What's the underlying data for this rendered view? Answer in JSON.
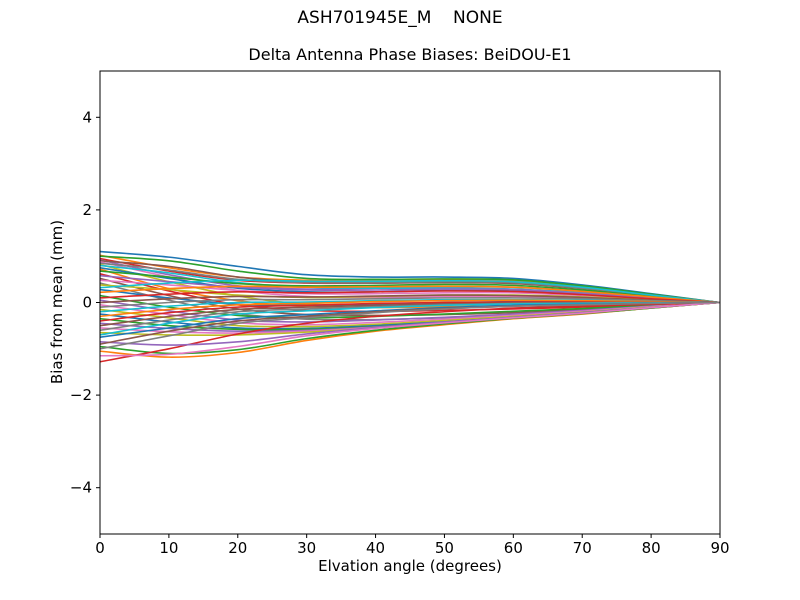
{
  "figure": {
    "suptitle": "ASH701945E_M    NONE",
    "background": "#ffffff"
  },
  "chart_data": {
    "type": "line",
    "title": "Delta Antenna Phase Biases: BeiDOU-E1",
    "xlabel": "Elvation angle (degrees)",
    "ylabel": "Bias from mean (mm)",
    "xlim": [
      0,
      90
    ],
    "ylim": [
      -5,
      5
    ],
    "xticks": [
      0,
      10,
      20,
      30,
      40,
      50,
      60,
      70,
      80,
      90
    ],
    "xticklabels": [
      "0",
      "10",
      "20",
      "30",
      "40",
      "50",
      "60",
      "70",
      "80",
      "90"
    ],
    "yticks": [
      -4,
      -2,
      0,
      2,
      4
    ],
    "yticklabels": [
      "−4",
      "−2",
      "0",
      "2",
      "4"
    ],
    "grid": false,
    "legend": "none",
    "line_width": 1.6,
    "palette": [
      "#1f77b4",
      "#ff7f0e",
      "#2ca02c",
      "#d62728",
      "#9467bd",
      "#8c564b",
      "#e377c2",
      "#7f7f7f",
      "#bcbd22",
      "#17becf"
    ],
    "x": [
      0,
      10,
      20,
      30,
      40,
      50,
      60,
      70,
      80,
      90
    ],
    "series": [
      [
        1.1,
        0.98,
        0.78,
        0.6,
        0.55,
        0.55,
        0.52,
        0.38,
        0.19,
        0
      ],
      [
        1.02,
        0.75,
        0.55,
        0.48,
        0.47,
        0.49,
        0.47,
        0.34,
        0.17,
        0
      ],
      [
        1.0,
        0.9,
        0.68,
        0.52,
        0.5,
        0.51,
        0.49,
        0.36,
        0.18,
        0
      ],
      [
        0.95,
        0.68,
        0.48,
        0.42,
        0.42,
        0.44,
        0.43,
        0.31,
        0.15,
        0
      ],
      [
        0.92,
        0.6,
        0.36,
        0.29,
        0.31,
        0.34,
        0.33,
        0.24,
        0.12,
        0
      ],
      [
        0.9,
        0.78,
        0.55,
        0.44,
        0.42,
        0.43,
        0.41,
        0.3,
        0.15,
        0
      ],
      [
        0.88,
        0.55,
        0.26,
        0.13,
        0.11,
        0.13,
        0.13,
        0.1,
        0.05,
        0
      ],
      [
        0.85,
        0.7,
        0.5,
        0.43,
        0.43,
        0.45,
        0.43,
        0.31,
        0.16,
        0
      ],
      [
        0.82,
        0.45,
        0.14,
        -0.04,
        -0.07,
        -0.04,
        -0.02,
        -0.01,
        0.0,
        0
      ],
      [
        0.8,
        0.64,
        0.43,
        0.33,
        0.31,
        0.31,
        0.29,
        0.21,
        0.11,
        0
      ],
      [
        0.75,
        0.52,
        0.31,
        0.23,
        0.23,
        0.26,
        0.25,
        0.18,
        0.09,
        0
      ],
      [
        0.72,
        0.3,
        0.04,
        -0.09,
        -0.11,
        -0.09,
        -0.07,
        -0.05,
        -0.02,
        0
      ],
      [
        0.68,
        0.55,
        0.41,
        0.36,
        0.37,
        0.39,
        0.37,
        0.27,
        0.13,
        0
      ],
      [
        0.62,
        0.25,
        -0.05,
        -0.17,
        -0.19,
        -0.17,
        -0.14,
        -0.1,
        -0.05,
        0
      ],
      [
        0.58,
        0.45,
        0.33,
        0.27,
        0.27,
        0.29,
        0.28,
        0.2,
        0.1,
        0
      ],
      [
        0.52,
        0.15,
        -0.14,
        -0.26,
        -0.28,
        -0.26,
        -0.22,
        -0.15,
        -0.07,
        0
      ],
      [
        0.48,
        0.38,
        0.26,
        0.19,
        0.19,
        0.21,
        0.21,
        0.15,
        0.08,
        0
      ],
      [
        0.42,
        0.05,
        -0.24,
        -0.36,
        -0.37,
        -0.33,
        -0.28,
        -0.2,
        -0.1,
        0
      ],
      [
        0.38,
        0.28,
        0.16,
        0.11,
        0.13,
        0.16,
        0.16,
        0.12,
        0.06,
        0
      ],
      [
        0.32,
        0.42,
        0.48,
        0.46,
        0.46,
        0.47,
        0.45,
        0.33,
        0.16,
        0
      ],
      [
        0.28,
        0.1,
        -0.04,
        -0.06,
        -0.03,
        0.0,
        0.02,
        0.02,
        0.01,
        0
      ],
      [
        0.22,
        0.3,
        0.35,
        0.33,
        0.34,
        0.35,
        0.33,
        0.24,
        0.12,
        0
      ],
      [
        0.15,
        -0.1,
        -0.28,
        -0.33,
        -0.3,
        -0.25,
        -0.19,
        -0.13,
        -0.06,
        0
      ],
      [
        0.1,
        0.18,
        0.23,
        0.21,
        0.23,
        0.25,
        0.24,
        0.17,
        0.08,
        0
      ],
      [
        0.05,
        -0.18,
        -0.38,
        -0.42,
        -0.38,
        -0.32,
        -0.25,
        -0.17,
        -0.08,
        0
      ],
      [
        0.0,
        0.08,
        0.13,
        0.12,
        0.14,
        0.16,
        0.15,
        0.11,
        0.05,
        0
      ],
      [
        -0.05,
        -0.26,
        -0.44,
        -0.48,
        -0.43,
        -0.36,
        -0.28,
        -0.19,
        -0.09,
        0
      ],
      [
        -0.1,
        0.0,
        0.06,
        0.06,
        0.08,
        0.1,
        0.1,
        0.08,
        0.04,
        0
      ],
      [
        -0.15,
        -0.33,
        -0.5,
        -0.52,
        -0.47,
        -0.39,
        -0.3,
        -0.21,
        -0.1,
        0
      ],
      [
        -0.2,
        -0.08,
        0.0,
        0.01,
        0.04,
        0.06,
        0.06,
        0.05,
        0.02,
        0
      ],
      [
        -0.25,
        -0.42,
        -0.55,
        -0.56,
        -0.5,
        -0.42,
        -0.32,
        -0.22,
        -0.11,
        0
      ],
      [
        -0.3,
        -0.15,
        -0.05,
        -0.02,
        0.02,
        0.04,
        0.05,
        0.04,
        0.02,
        0
      ],
      [
        -0.35,
        -0.5,
        -0.58,
        -0.58,
        -0.52,
        -0.43,
        -0.33,
        -0.23,
        -0.11,
        0
      ],
      [
        -0.4,
        -0.22,
        -0.1,
        -0.06,
        -0.02,
        0.0,
        0.01,
        0.01,
        0.0,
        0
      ],
      [
        -0.45,
        -0.56,
        -0.62,
        -0.6,
        -0.53,
        -0.44,
        -0.33,
        -0.23,
        -0.11,
        0
      ],
      [
        -0.5,
        -0.3,
        -0.15,
        -0.1,
        -0.06,
        -0.03,
        -0.01,
        0.0,
        0.0,
        0
      ],
      [
        -0.55,
        -0.63,
        -0.66,
        -0.62,
        -0.54,
        -0.45,
        -0.34,
        -0.24,
        -0.12,
        0
      ],
      [
        -0.6,
        -0.38,
        -0.2,
        -0.14,
        -0.09,
        -0.05,
        -0.02,
        -0.01,
        0.0,
        0
      ],
      [
        -0.65,
        -0.7,
        -0.7,
        -0.64,
        -0.55,
        -0.45,
        -0.34,
        -0.24,
        -0.12,
        0
      ],
      [
        -0.7,
        -0.45,
        -0.25,
        -0.18,
        -0.11,
        -0.06,
        -0.03,
        -0.02,
        -0.01,
        0
      ],
      [
        -0.75,
        -0.55,
        -0.35,
        -0.26,
        -0.18,
        -0.11,
        -0.06,
        -0.04,
        -0.02,
        0
      ],
      [
        -1.05,
        -1.18,
        -1.08,
        -0.82,
        -0.62,
        -0.48,
        -0.35,
        -0.25,
        -0.12,
        0
      ],
      [
        -0.95,
        -1.1,
        -1.02,
        -0.78,
        -0.6,
        -0.46,
        -0.34,
        -0.24,
        -0.12,
        0
      ],
      [
        -1.28,
        -1.0,
        -0.68,
        -0.45,
        -0.3,
        -0.2,
        -0.12,
        -0.08,
        -0.04,
        0
      ],
      [
        -0.85,
        -0.92,
        -0.85,
        -0.68,
        -0.54,
        -0.42,
        -0.32,
        -0.22,
        -0.11,
        0
      ],
      [
        -0.9,
        -0.62,
        -0.4,
        -0.3,
        -0.2,
        -0.13,
        -0.08,
        -0.05,
        -0.02,
        0
      ],
      [
        -1.15,
        -1.12,
        -0.95,
        -0.72,
        -0.56,
        -0.44,
        -0.33,
        -0.23,
        -0.11,
        0
      ],
      [
        -1.0,
        -0.72,
        -0.45,
        -0.33,
        -0.22,
        -0.14,
        -0.08,
        -0.05,
        -0.02,
        0
      ]
    ]
  }
}
